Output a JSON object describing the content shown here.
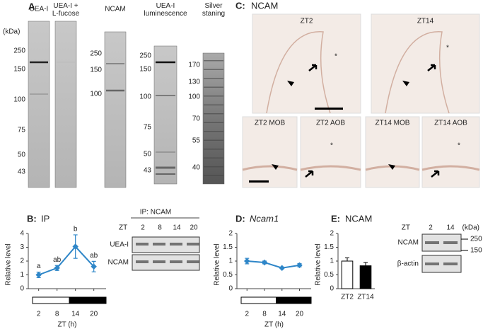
{
  "panels": {
    "a": {
      "label": "A",
      "unit": "(kDa)",
      "lanes": [
        "UEA-I",
        "UEA-I + L-fucose",
        "NCAM",
        "UEA-I luminescence",
        "Silver staning"
      ],
      "markers": [
        [
          250,
          150,
          100,
          75,
          50,
          43
        ],
        [
          250,
          150,
          100
        ],
        [
          250,
          150,
          100,
          75,
          50,
          43
        ],
        [
          170,
          130,
          100,
          70,
          55,
          40
        ]
      ]
    },
    "c": {
      "label": "C:",
      "title": "NCAM",
      "images": [
        "ZT2",
        "ZT14",
        "ZT2  MOB",
        "ZT2  AOB",
        "ZT14  MOB",
        "ZT14  AOB"
      ],
      "asterisk": "*"
    },
    "b_blot": {
      "title": "IP: NCAM",
      "zt": "ZT",
      "lanes": [
        "2",
        "8",
        "14",
        "20"
      ],
      "rows": [
        "UEA-I",
        "NCAM"
      ]
    },
    "e_blot": {
      "zt": "ZT",
      "lanes": [
        "2",
        "14"
      ],
      "unit": "(kDa)",
      "rows": [
        "NCAM",
        "β-actin"
      ],
      "markers": [
        250,
        150
      ]
    }
  },
  "chart_data": [
    {
      "type": "line",
      "label": "B:",
      "title": "IP",
      "x": [
        2,
        8,
        14,
        20
      ],
      "values": [
        1.0,
        1.5,
        3.05,
        1.6
      ],
      "errors": [
        0.2,
        0.18,
        0.85,
        0.38
      ],
      "color": "#2e86c8",
      "annotations": [
        "a",
        "ab",
        "b",
        "ab"
      ],
      "xlim": [
        0,
        24
      ],
      "xticks": [
        2,
        8,
        14,
        20
      ],
      "ylim": [
        0,
        4
      ],
      "yticks": [
        0,
        1,
        2,
        3,
        4
      ],
      "xlabel": "ZT (h)",
      "ylabel": "Relative level"
    },
    {
      "type": "line",
      "label": "D:",
      "title": "Ncam1",
      "x": [
        2,
        8,
        14,
        20
      ],
      "values": [
        1.0,
        0.95,
        0.75,
        0.85
      ],
      "errors": [
        0.1,
        0.05,
        0.03,
        0.06
      ],
      "color": "#2e86c8",
      "xlim": [
        0,
        24
      ],
      "xticks": [
        2,
        8,
        14,
        20
      ],
      "ylim": [
        0,
        2
      ],
      "yticks": [
        0,
        0.5,
        1,
        1.5,
        2
      ],
      "xlabel": "ZT (h)",
      "ylabel": "Relative level"
    },
    {
      "type": "bar",
      "label": "E:",
      "title": "NCAM",
      "categories": [
        "ZT2",
        "ZT14"
      ],
      "values": [
        1.0,
        0.83
      ],
      "errors": [
        0.12,
        0.12
      ],
      "colors": [
        "#ffffff",
        "#000000"
      ],
      "ylim": [
        0,
        2
      ],
      "yticks": [
        0,
        0.5,
        1,
        1.5,
        2
      ],
      "ylabel": "Relative level"
    }
  ]
}
